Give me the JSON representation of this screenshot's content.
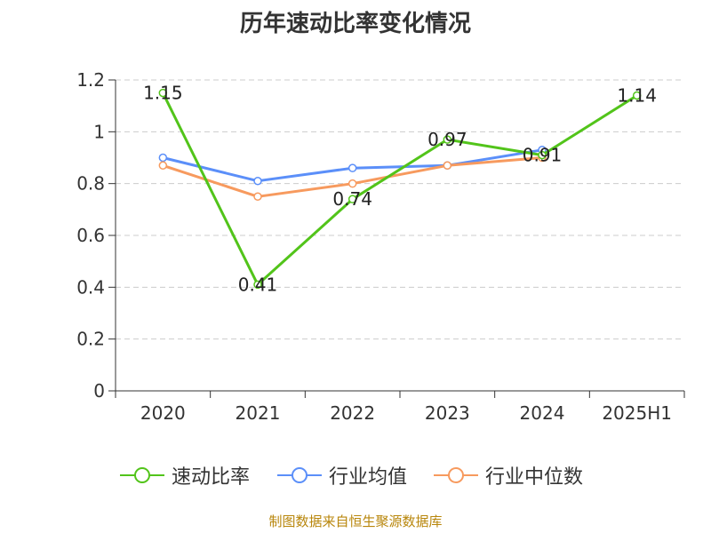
{
  "chart_data": {
    "type": "line",
    "title": "历年速动比率变化情况",
    "categories": [
      "2020",
      "2021",
      "2022",
      "2023",
      "2024",
      "2025H1"
    ],
    "y_ticks": [
      "0",
      "0.2",
      "0.4",
      "0.6",
      "0.8",
      "1",
      "1.2"
    ],
    "ylim": [
      0,
      1.2
    ],
    "grid": true,
    "legend_position": "bottom",
    "series": [
      {
        "name": "速动比率",
        "color": "#52c41a",
        "values": [
          1.15,
          0.41,
          0.74,
          0.97,
          0.91,
          1.14
        ],
        "labels": [
          "1.15",
          "0.41",
          "0.74",
          "0.97",
          "0.91",
          "1.14"
        ]
      },
      {
        "name": "行业均值",
        "color": "#5b8ff9",
        "values": [
          0.9,
          0.81,
          0.86,
          0.87,
          0.93,
          null
        ]
      },
      {
        "name": "行业中位数",
        "color": "#f79a5e",
        "values": [
          0.87,
          0.75,
          0.8,
          0.87,
          0.9,
          null
        ]
      }
    ]
  },
  "source": "制图数据来自恒生聚源数据库"
}
